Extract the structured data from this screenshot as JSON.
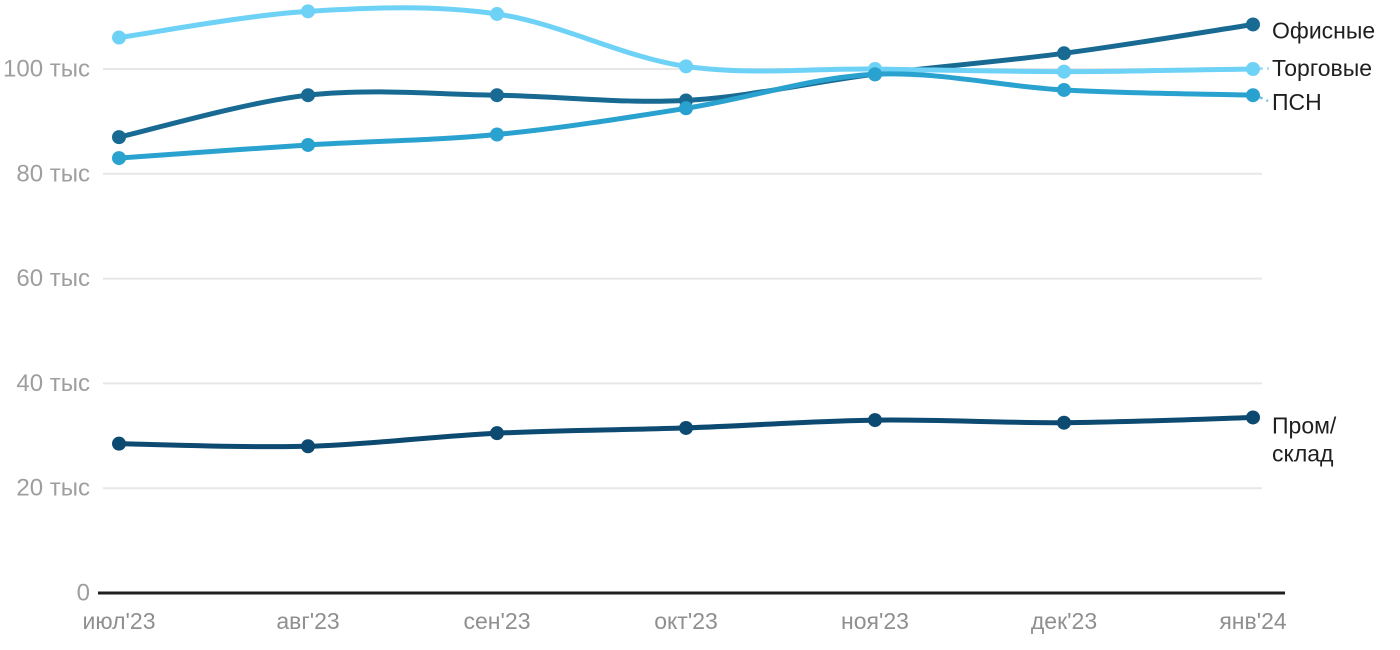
{
  "chart_data": {
    "type": "line",
    "x": [
      "июл'23",
      "авг'23",
      "сен'23",
      "окт'23",
      "ноя'23",
      "дек'23",
      "янв'24"
    ],
    "series": [
      {
        "name": "Офисные",
        "legend_lines": [
          "Офисные"
        ],
        "color": "#186a93",
        "values": [
          87,
          95,
          95,
          94,
          99,
          103,
          108.5
        ]
      },
      {
        "name": "Торговые",
        "legend_lines": [
          "Торговые"
        ],
        "color": "#6ed2f6",
        "values": [
          106,
          111,
          110.5,
          100.5,
          100,
          99.5,
          100
        ]
      },
      {
        "name": "ПСН",
        "legend_lines": [
          "ПСН"
        ],
        "color": "#2aa2cf",
        "values": [
          83,
          85.5,
          87.5,
          92.5,
          99,
          96,
          95
        ]
      },
      {
        "name": "Пром/склад",
        "legend_lines": [
          "Пром/",
          "склад"
        ],
        "color": "#0c4a71",
        "values": [
          28.5,
          28,
          30.5,
          31.5,
          33,
          32.5,
          33.5
        ]
      }
    ],
    "yticks": [
      {
        "value": 0,
        "label": "0"
      },
      {
        "value": 20,
        "label": "20 тыс"
      },
      {
        "value": 40,
        "label": "40 тыс"
      },
      {
        "value": 60,
        "label": "60 тыс"
      },
      {
        "value": 80,
        "label": "80 тыс"
      },
      {
        "value": 100,
        "label": "100 тыс"
      }
    ],
    "ylim": [
      0,
      113
    ],
    "unit": "тыс",
    "grid": true,
    "legend_position": "right",
    "colors": {
      "grid": "#e7e7e7",
      "axis": "#1f1f1f",
      "y_tick_text": "#9e9e9e",
      "x_tick_text": "#8f8f8f",
      "legend_text": "#1f1f1f",
      "background": "#ffffff"
    }
  }
}
